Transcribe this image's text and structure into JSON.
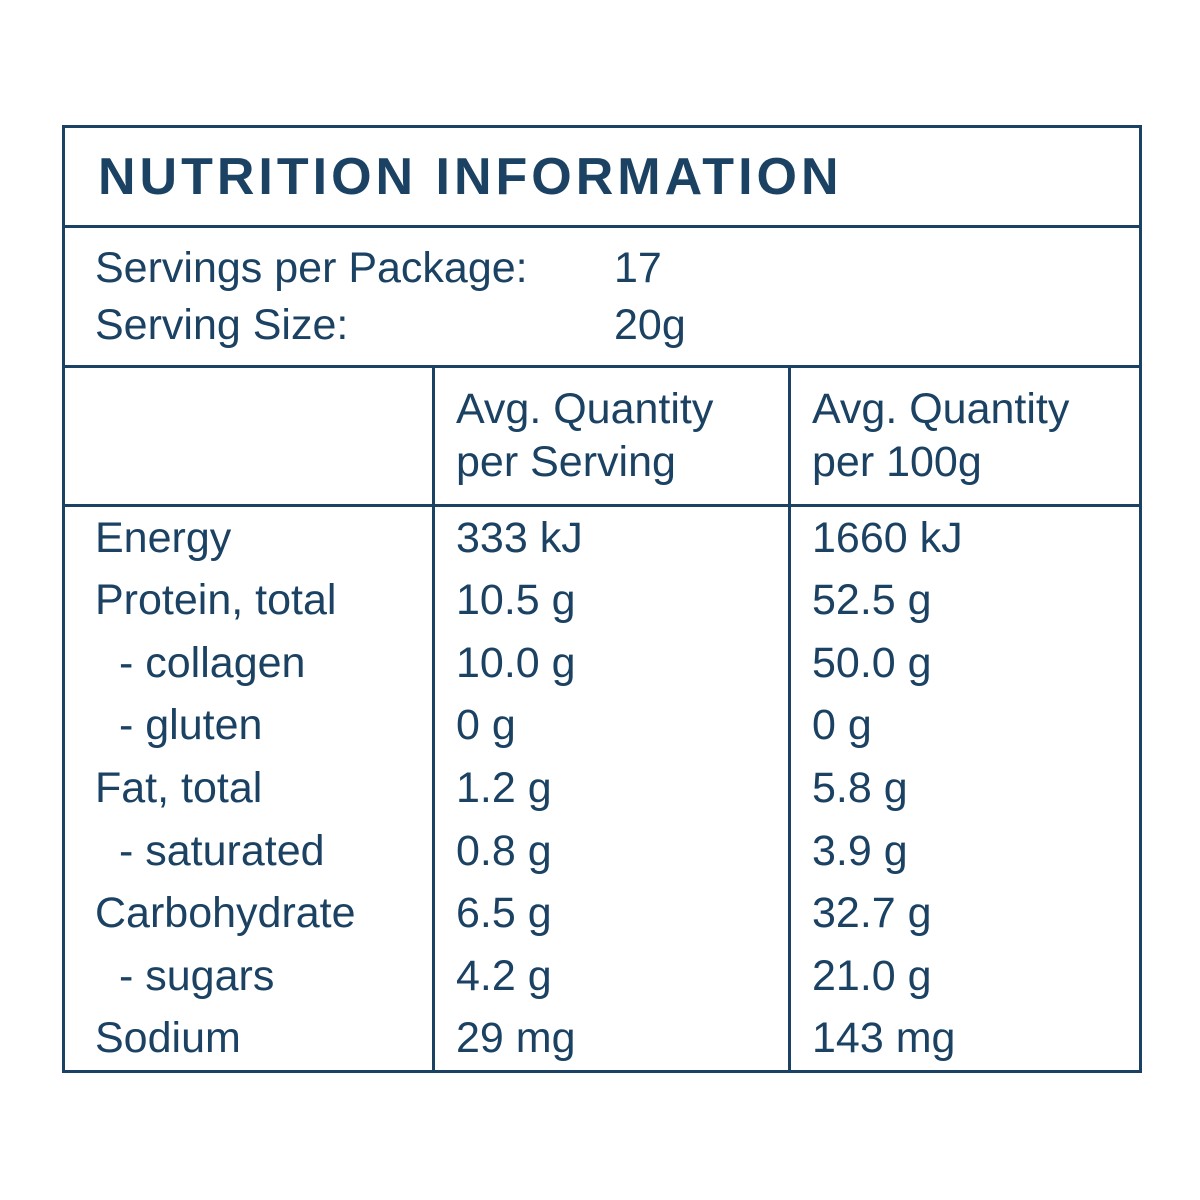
{
  "panel": {
    "title": "NUTRITION INFORMATION",
    "servings": {
      "per_package_label": "Servings per Package:",
      "per_package_value": "17",
      "size_label": "Serving Size:",
      "size_value": "20g"
    },
    "columns": {
      "serving_line1": "Avg. Quantity",
      "serving_line2": "per Serving",
      "per100_line1": "Avg. Quantity",
      "per100_line2": "per 100g"
    },
    "rows": [
      {
        "label": "Energy",
        "per_serving": "333 kJ",
        "per_100g": "1660 kJ"
      },
      {
        "label": "Protein, total",
        "per_serving": "10.5 g",
        "per_100g": "52.5 g"
      },
      {
        "label": "- collagen",
        "per_serving": "10.0 g",
        "per_100g": "50.0 g"
      },
      {
        "label": "- gluten",
        "per_serving": "0 g",
        "per_100g": "0 g"
      },
      {
        "label": "Fat, total",
        "per_serving": "1.2 g",
        "per_100g": "5.8 g"
      },
      {
        "label": "- saturated",
        "per_serving": "0.8 g",
        "per_100g": "3.9 g"
      },
      {
        "label": "Carbohydrate",
        "per_serving": "6.5 g",
        "per_100g": "32.7 g"
      },
      {
        "label": "- sugars",
        "per_serving": "4.2 g",
        "per_100g": "21.0 g"
      },
      {
        "label": "Sodium",
        "per_serving": "29 mg",
        "per_100g": "143 mg"
      }
    ],
    "colors": {
      "text": "#1b4263",
      "border": "#1b4263",
      "background": "#ffffff"
    }
  }
}
